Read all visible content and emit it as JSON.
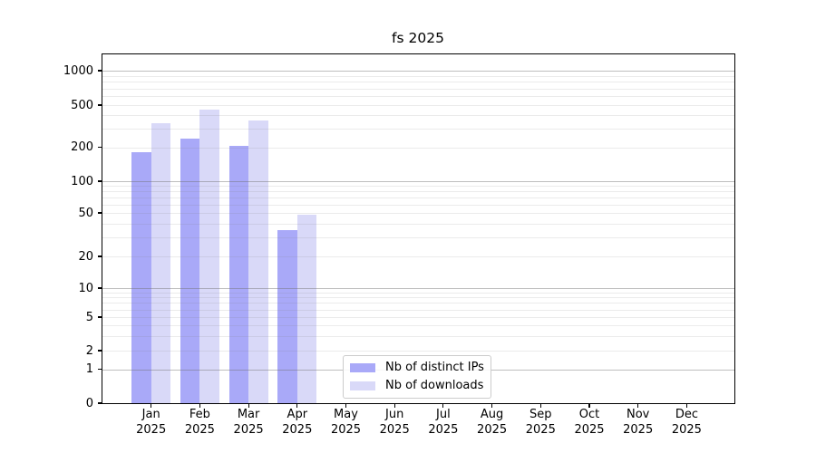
{
  "title": "fs 2025",
  "chart_data": {
    "type": "bar",
    "title": "fs 2025",
    "categories": [
      "Jan 2025",
      "Feb 2025",
      "Mar 2025",
      "Apr 2025",
      "May 2025",
      "Jun 2025",
      "Jul 2025",
      "Aug 2025",
      "Sep 2025",
      "Oct 2025",
      "Nov 2025",
      "Dec 2025"
    ],
    "series": [
      {
        "name": "Nb of distinct IPs",
        "color": "#a9a9f8",
        "values": [
          180,
          240,
          207,
          35,
          0,
          0,
          0,
          0,
          0,
          0,
          0,
          0
        ]
      },
      {
        "name": "Nb of downloads",
        "color": "#d9d9f8",
        "values": [
          340,
          450,
          355,
          48,
          0,
          0,
          0,
          0,
          0,
          0,
          0,
          0
        ]
      }
    ],
    "xlabel": "",
    "ylabel": "",
    "yscale": "symlog",
    "y_ticks": [
      0,
      1,
      2,
      5,
      10,
      20,
      50,
      100,
      200,
      500,
      1000
    ],
    "ylim": [
      0,
      1450
    ],
    "grid": "horizontal; dark lines at powers of 10, faint minor lines at 2-9 subdivisions, drawn over bars",
    "legend_position": "lower center"
  },
  "legend": {
    "items": [
      {
        "label": "Nb of distinct IPs",
        "color": "#a9a9f8"
      },
      {
        "label": "Nb of downloads",
        "color": "#d9d9f8"
      }
    ]
  }
}
